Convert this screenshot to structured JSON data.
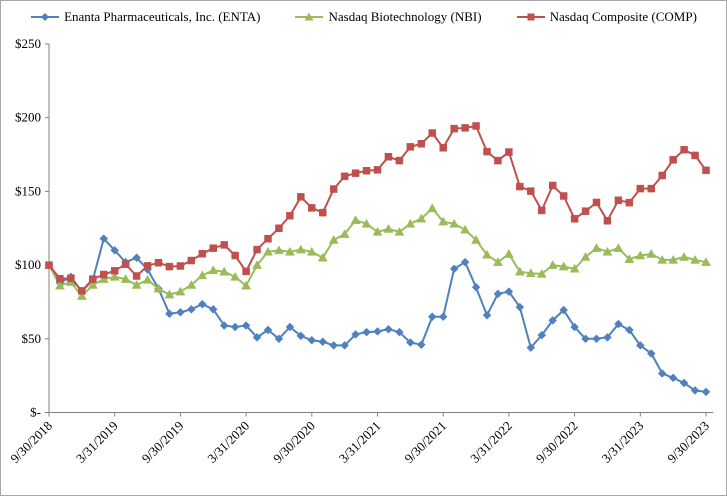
{
  "chart_data": {
    "type": "line",
    "title": "",
    "xlabel": "",
    "ylabel": "",
    "grid": "off",
    "legend_position": "top",
    "x_axis": {
      "total_months": 60,
      "tick_positions_months": [
        0,
        6,
        12,
        18,
        24,
        30,
        36,
        42,
        48,
        54,
        60
      ],
      "tick_labels": [
        "9/30/2018",
        "3/31/2019",
        "9/30/2019",
        "3/31/2020",
        "9/30/2020",
        "3/31/2021",
        "9/30/2021",
        "3/31/2022",
        "9/30/2022",
        "3/31/2023",
        "9/30/2023"
      ]
    },
    "y_axis": {
      "range": [
        0,
        250
      ],
      "tick_values": [
        250,
        200,
        150,
        100,
        50,
        0
      ],
      "tick_labels": [
        "$250",
        "$200",
        "$150",
        "$100",
        "$50",
        "$-"
      ]
    },
    "series": [
      {
        "name": "Enanta Pharmaceuticals, Inc. (ENTA)",
        "marker": "diamond",
        "color": "#4F81BD",
        "values": [
          100,
          88,
          92,
          82,
          90,
          118,
          110,
          102,
          105,
          97,
          84,
          67,
          68,
          70,
          73.5,
          70,
          59,
          58,
          59,
          51,
          56,
          50,
          58,
          52,
          49,
          48,
          45.5,
          45.5,
          53,
          54.5,
          55,
          56.5,
          54.5,
          47.5,
          46,
          65,
          65,
          97.5,
          102,
          85,
          66,
          80.5,
          82,
          71.5,
          44,
          52.5,
          62.5,
          69.5,
          58,
          50,
          50,
          51,
          60,
          56,
          45.5,
          40,
          26.5,
          23.5,
          20,
          15,
          14
        ]
      },
      {
        "name": "Nasdaq Biotechnology (NBI)",
        "marker": "triangle",
        "color": "#9BBB59",
        "values": [
          100,
          86,
          88.5,
          79,
          86.5,
          90.5,
          92,
          90.5,
          86.5,
          90,
          84,
          80,
          82,
          86.5,
          93,
          96.5,
          95.5,
          92,
          86,
          100,
          109,
          110,
          109,
          110.5,
          109,
          105,
          117,
          121,
          130.5,
          128,
          122.5,
          124.5,
          122.5,
          128,
          131.5,
          138.5,
          129.5,
          128,
          124,
          117,
          107,
          102,
          107.5,
          95.5,
          94.5,
          94,
          100,
          99,
          97.5,
          105.5,
          111.5,
          109,
          111.5,
          104,
          106.5,
          107.5,
          103.5,
          103.5,
          105.5,
          103.5,
          102
        ]
      },
      {
        "name": "Nasdaq Composite (COMP)",
        "marker": "square",
        "color": "#C0504D",
        "values": [
          100,
          90.8,
          91.1,
          82.5,
          90.5,
          93.6,
          96.1,
          100.6,
          92.6,
          99.5,
          101.6,
          99,
          99.4,
          103.1,
          107.7,
          111.5,
          113.7,
          106.5,
          95.7,
          110.5,
          117.9,
          125,
          133.5,
          146.3,
          138.8,
          135.6,
          151.6,
          160.2,
          162.4,
          164,
          164.6,
          173.5,
          170.9,
          180.2,
          182.3,
          189.6,
          179.6,
          192.6,
          193.1,
          194.4,
          177,
          170.9,
          176.7,
          153.3,
          150.2,
          137.1,
          154,
          146.9,
          131.4,
          136.6,
          142.5,
          130.1,
          144,
          142.4,
          151.9,
          151.9,
          160.8,
          171.4,
          178.3,
          174.4,
          164.3
        ]
      }
    ]
  },
  "colors": {
    "background": "#FFFFFF",
    "axis": "#808080",
    "text": "#000000",
    "border": "#A6A6A6"
  }
}
